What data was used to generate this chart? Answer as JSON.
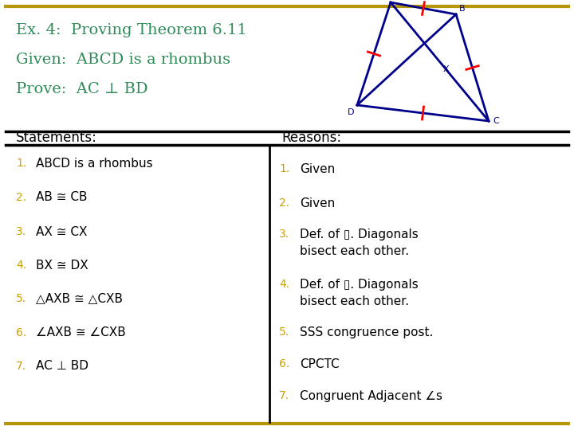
{
  "title_lines": [
    "Ex. 4:  Proving Theorem 6.11",
    "Given:  ABCD is a rhombus",
    "Prove:  AC ⊥ BD"
  ],
  "title_color": "#2e8b57",
  "bg_color": "#ffffff",
  "border_color": "#b8960c",
  "header_left": "Statements:",
  "header_right": "Reasons:",
  "header_color": "#000000",
  "statements": [
    "ABCD is a rhombus",
    "AB ≅ CB",
    "AX ≅ CX",
    "BX ≅ DX",
    "△AXB ≅ △CXB",
    "∠AXB ≅ ∠CXB",
    "AC ⊥ BD"
  ],
  "reasons": [
    "Given",
    "Given",
    "Def. of ▯. Diagonals\nbisect each other.",
    "Def. of ▯. Diagonals\nbisect each other.",
    "SSS congruence post.",
    "CPCTC",
    "Congruent Adjacent ∠s"
  ],
  "number_color": "#c8a000",
  "text_color": "#000000",
  "fontsize_title": 14,
  "fontsize_body": 11,
  "fontsize_number": 10
}
